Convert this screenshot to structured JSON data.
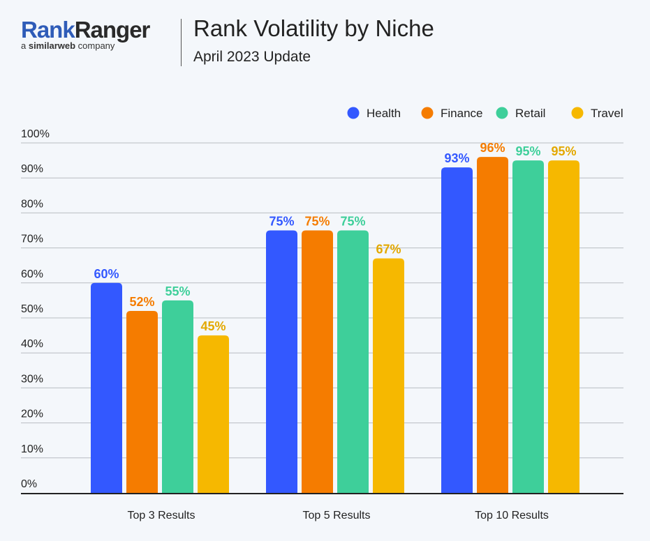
{
  "logo": {
    "brand_part1": "Rank",
    "brand_part2": "Ranger",
    "tagline_prefix": "a ",
    "tagline_brand": "similarweb",
    "tagline_suffix": " company"
  },
  "header": {
    "title": "Rank Volatility by Niche",
    "subtitle": "April 2023 Update"
  },
  "chart_data": {
    "type": "bar",
    "title": "Rank Volatility by Niche",
    "subtitle": "April 2023 Update",
    "xlabel": "",
    "ylabel": "",
    "ylim": [
      0,
      100
    ],
    "yticks": [
      0,
      10,
      20,
      30,
      40,
      50,
      60,
      70,
      80,
      90,
      100
    ],
    "ytick_labels": [
      "0%",
      "10%",
      "20%",
      "30%",
      "40%",
      "50%",
      "60%",
      "70%",
      "80%",
      "90%",
      "100%"
    ],
    "grid": true,
    "legend_position": "top-right",
    "categories": [
      "Top 3 Results",
      "Top 5 Results",
      "Top 10 Results"
    ],
    "series": [
      {
        "name": "Health",
        "color": "#3358ff",
        "label_color": "#3358ff",
        "values": [
          60,
          75,
          93
        ],
        "labels": [
          "60%",
          "75%",
          "93%"
        ]
      },
      {
        "name": "Finance",
        "color": "#f57c00",
        "label_color": "#f57c00",
        "values": [
          52,
          75,
          96
        ],
        "labels": [
          "52%",
          "75%",
          "96%"
        ]
      },
      {
        "name": "Retail",
        "color": "#3ecf9a",
        "label_color": "#3ecf9a",
        "values": [
          55,
          75,
          95
        ],
        "labels": [
          "55%",
          "75%",
          "95%"
        ]
      },
      {
        "name": "Travel",
        "color": "#f6b800",
        "label_color": "#e3a800",
        "values": [
          45,
          67,
          95
        ],
        "labels": [
          "45%",
          "67%",
          "95%"
        ]
      }
    ]
  }
}
